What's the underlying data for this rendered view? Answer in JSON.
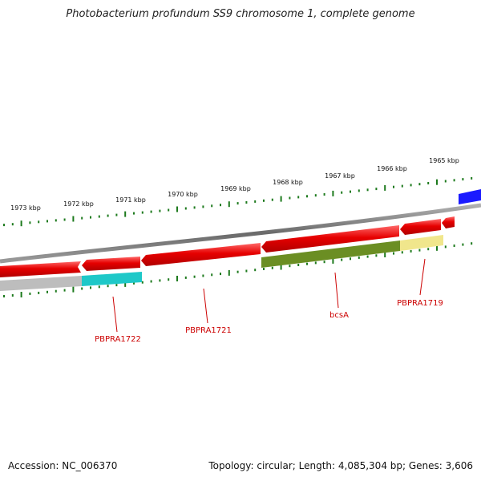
{
  "header": {
    "title": "Photobacterium profundum SS9 chromosome 1, complete genome"
  },
  "footer": {
    "accession": "Accession: NC_006370",
    "summary": "Topology: circular; Length: 4,085,304 bp; Genes: 3,606"
  },
  "ruler": {
    "tick_color": "#1d7a1d",
    "labels": [
      "1973 kbp",
      "1972 kbp",
      "1971 kbp",
      "1970 kbp",
      "1969 kbp",
      "1968 kbp",
      "1967 kbp",
      "1966 kbp",
      "1965 kbp"
    ]
  },
  "genes": [
    {
      "label": "PBPRA1722",
      "strand": "reverse",
      "color": "#e60000"
    },
    {
      "label": "PBPRA1721",
      "strand": "reverse",
      "color": "#e60000"
    },
    {
      "label": "bcsA",
      "strand": "reverse",
      "color": "#e60000"
    },
    {
      "label": "PBPRA1719",
      "strand": "reverse",
      "color": "#e60000"
    }
  ],
  "gene_label_color": "#cc0000",
  "legend_colors": {
    "backbone": "#808080",
    "forward": "#1a1aff",
    "cyan": "#00c8c8",
    "olive": "#6b8e23",
    "khaki": "#f0e68c",
    "grey": "#bbbbbb"
  }
}
